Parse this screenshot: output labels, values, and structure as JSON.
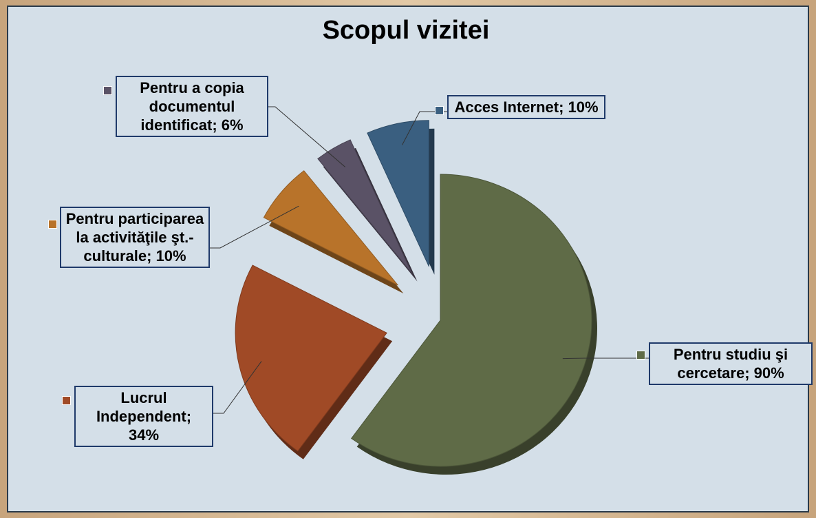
{
  "chart_data": {
    "type": "pie",
    "title": "Scopul vizitei",
    "categories": [
      "Pentru studiu şi cercetare; 90%",
      "Lucrul Independent; 34%",
      "Pentru participarea la activităţile şt.-culturale; 10%",
      "Pentru a copia documentul identificat; 6%",
      "Acces Internet; 10%"
    ],
    "values": [
      90,
      34,
      10,
      6,
      10
    ],
    "colors": [
      "#5f6b47",
      "#a04a26",
      "#b8732a",
      "#5a5266",
      "#3a5f80"
    ]
  }
}
